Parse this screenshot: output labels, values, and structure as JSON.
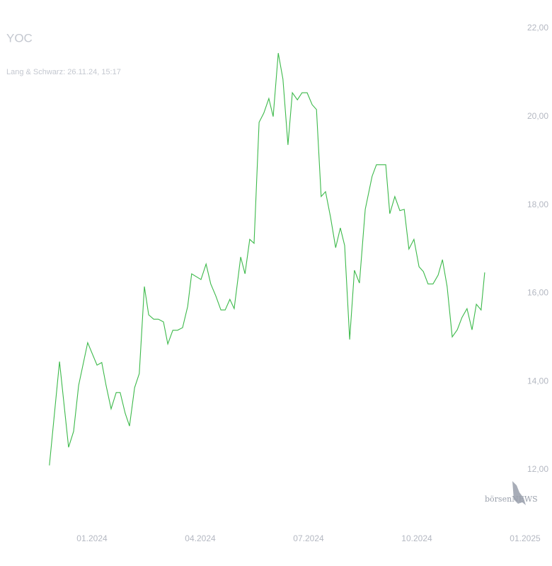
{
  "chart_data": {
    "type": "line",
    "title": "YOC",
    "subtitle": "Lang & Schwarz: 26.11.24, 15:17",
    "logo_text": "börsenNEWS",
    "x": [
      -1.18,
      -0.9,
      -0.65,
      -0.51,
      -0.37,
      -0.12,
      0.14,
      0.27,
      0.39,
      0.53,
      0.67,
      0.78,
      0.92,
      1.04,
      1.18,
      1.31,
      1.45,
      1.57,
      1.71,
      1.84,
      1.98,
      2.1,
      2.24,
      2.37,
      2.51,
      2.65,
      2.76,
      3.02,
      3.16,
      3.29,
      3.43,
      3.57,
      3.69,
      3.82,
      3.94,
      4.12,
      4.24,
      4.37,
      4.49,
      4.63,
      4.76,
      4.9,
      5.02,
      5.16,
      5.29,
      5.43,
      5.55,
      5.69,
      5.82,
      5.96,
      6.1,
      6.22,
      6.35,
      6.47,
      6.61,
      6.75,
      6.88,
      7.0,
      7.14,
      7.27,
      7.41,
      7.57,
      7.76,
      7.88,
      8.14,
      8.25,
      8.39,
      8.53,
      8.65,
      8.78,
      8.92,
      9.06,
      9.18,
      9.31,
      9.45,
      9.59,
      9.71,
      9.84,
      9.98,
      10.12,
      10.25,
      10.39,
      10.53,
      10.65,
      10.78,
      10.88
    ],
    "series": [
      {
        "name": "YOC",
        "color": "#3cb94a",
        "values": [
          12.1,
          14.45,
          12.51,
          12.87,
          13.91,
          14.88,
          14.37,
          14.43,
          13.91,
          13.38,
          13.75,
          13.75,
          13.28,
          12.99,
          13.86,
          14.18,
          16.15,
          15.51,
          15.41,
          15.41,
          15.35,
          14.85,
          15.16,
          15.16,
          15.22,
          15.7,
          16.44,
          16.31,
          16.66,
          16.21,
          15.94,
          15.62,
          15.62,
          15.86,
          15.65,
          16.82,
          16.44,
          17.22,
          17.13,
          19.87,
          20.08,
          20.41,
          20.0,
          21.44,
          20.85,
          19.36,
          20.54,
          20.38,
          20.54,
          20.54,
          20.27,
          20.16,
          18.19,
          18.3,
          17.72,
          17.03,
          17.48,
          17.08,
          14.95,
          16.52,
          16.23,
          17.9,
          18.65,
          18.91,
          18.91,
          17.8,
          18.19,
          17.87,
          17.9,
          17.0,
          17.22,
          16.6,
          16.49,
          16.21,
          16.21,
          16.41,
          16.76,
          16.15,
          15.01,
          15.17,
          15.45,
          15.65,
          15.17,
          15.75,
          15.62,
          16.47
        ]
      }
    ],
    "xlim": [
      -2.5,
      12.5
    ],
    "xticks": [
      {
        "value": 0,
        "label": "01.2024"
      },
      {
        "value": 3,
        "label": "04.2024"
      },
      {
        "value": 6,
        "label": "07.2024"
      },
      {
        "value": 9,
        "label": "10.2024"
      },
      {
        "value": 12,
        "label": "01.2025"
      }
    ],
    "ylim": [
      11.5,
      22.3
    ],
    "yticks": [
      {
        "value": 12,
        "label": "12,00"
      },
      {
        "value": 14,
        "label": "14,00"
      },
      {
        "value": 16,
        "label": "16,00"
      },
      {
        "value": 18,
        "label": "18,00"
      },
      {
        "value": 20,
        "label": "20,00"
      },
      {
        "value": 22,
        "label": "22,00"
      }
    ],
    "grid": false
  }
}
